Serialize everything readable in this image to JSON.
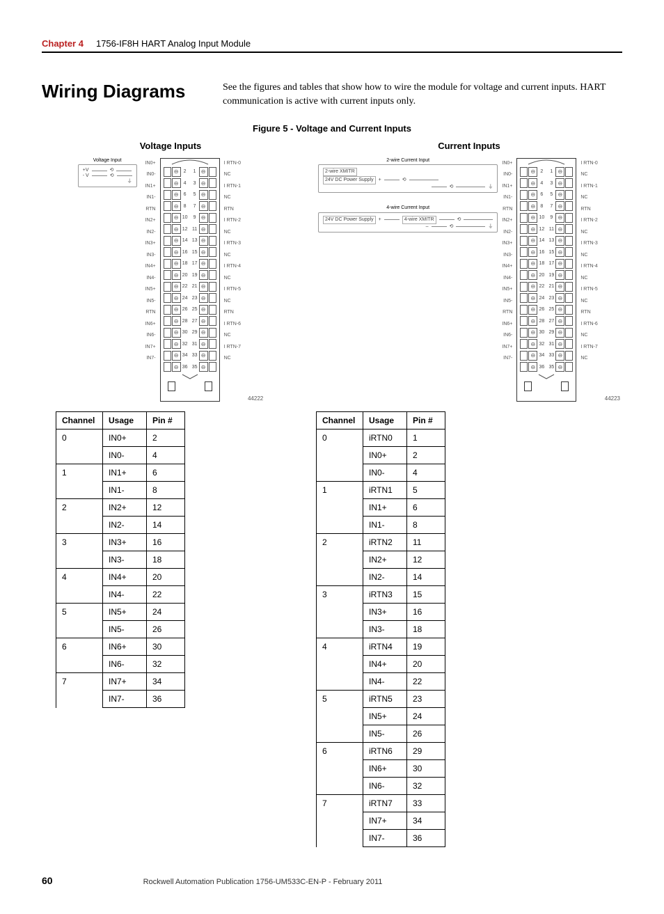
{
  "header": {
    "chapter_label": "Chapter 4",
    "chapter_title": "1756-IF8H HART Analog Input Module"
  },
  "title": "Wiring Diagrams",
  "intro": "See the figures and tables that show how to wire the module for voltage and current inputs. HART communication is active with current inputs only.",
  "figure_caption": "Figure 5 - Voltage and Current Inputs",
  "voltage": {
    "heading": "Voltage Inputs",
    "sketch_label": "Voltage Input",
    "plus": "+V",
    "minus": "- V",
    "ref": "44222",
    "left_pins": [
      "IN0+",
      "IN0-",
      "IN1+",
      "IN1-",
      "RTN",
      "IN2+",
      "IN2-",
      "IN3+",
      "IN3-",
      "IN4+",
      "IN4-",
      "IN5+",
      "IN5-",
      "RTN",
      "IN6+",
      "IN6-",
      "IN7+",
      "IN7-"
    ],
    "right_pins": [
      "I RTN-0",
      "NC",
      "I RTN-1",
      "NC",
      "RTN",
      "I RTN-2",
      "NC",
      "I RTN-3",
      "NC",
      "I RTN-4",
      "NC",
      "I RTN-5",
      "NC",
      "RTN",
      "I RTN-6",
      "NC",
      "I RTN-7",
      "NC"
    ],
    "tb_left_nums": [
      2,
      4,
      6,
      8,
      10,
      12,
      14,
      16,
      18,
      20,
      22,
      24,
      26,
      28,
      30,
      32,
      34,
      36
    ],
    "tb_right_nums": [
      1,
      3,
      5,
      7,
      9,
      11,
      13,
      15,
      17,
      19,
      21,
      23,
      25,
      27,
      29,
      31,
      33,
      35
    ],
    "table": {
      "columns": [
        "Channel",
        "Usage",
        "Pin #"
      ],
      "rows": [
        [
          "0",
          "IN0+",
          "2"
        ],
        [
          "",
          "IN0-",
          "4"
        ],
        [
          "1",
          "IN1+",
          "6"
        ],
        [
          "",
          "IN1-",
          "8"
        ],
        [
          "2",
          "IN2+",
          "12"
        ],
        [
          "",
          "IN2-",
          "14"
        ],
        [
          "3",
          "IN3+",
          "16"
        ],
        [
          "",
          "IN3-",
          "18"
        ],
        [
          "4",
          "IN4+",
          "20"
        ],
        [
          "",
          "IN4-",
          "22"
        ],
        [
          "5",
          "IN5+",
          "24"
        ],
        [
          "",
          "IN5-",
          "26"
        ],
        [
          "6",
          "IN6+",
          "30"
        ],
        [
          "",
          "IN6-",
          "32"
        ],
        [
          "7",
          "IN7+",
          "34"
        ],
        [
          "",
          "IN7-",
          "36"
        ]
      ]
    }
  },
  "current": {
    "heading": "Current Inputs",
    "sketch2_label": "2-wire Current Input",
    "sketch4_label": "4-wire Current Input",
    "ps_text": "24V DC Power Supply",
    "xmitr2": "2-wire XMITR",
    "xmitr4": "4-wire XMITR",
    "ref": "44223",
    "left_pins": [
      "IN0+",
      "IN0-",
      "IN1+",
      "IN1-",
      "RTN",
      "IN2+",
      "IN2-",
      "IN3+",
      "IN3-",
      "IN4+",
      "IN4-",
      "IN5+",
      "IN5-",
      "RTN",
      "IN6+",
      "IN6-",
      "IN7+",
      "IN7-"
    ],
    "right_pins": [
      "I RTN-0",
      "NC",
      "I RTN-1",
      "NC",
      "RTN",
      "I RTN-2",
      "NC",
      "I RTN-3",
      "NC",
      "I RTN-4",
      "NC",
      "I RTN-5",
      "NC",
      "RTN",
      "I RTN-6",
      "NC",
      "I RTN-7",
      "NC"
    ],
    "tb_left_nums": [
      2,
      4,
      6,
      8,
      10,
      12,
      14,
      16,
      18,
      20,
      22,
      24,
      26,
      28,
      30,
      32,
      34,
      36
    ],
    "tb_right_nums": [
      1,
      3,
      5,
      7,
      9,
      11,
      13,
      15,
      17,
      19,
      21,
      23,
      25,
      27,
      29,
      31,
      33,
      35
    ],
    "table": {
      "columns": [
        "Channel",
        "Usage",
        "Pin #"
      ],
      "rows": [
        [
          "0",
          "iRTN0",
          "1"
        ],
        [
          "",
          "IN0+",
          "2"
        ],
        [
          "",
          "IN0-",
          "4"
        ],
        [
          "1",
          "iRTN1",
          "5"
        ],
        [
          "",
          "IN1+",
          "6"
        ],
        [
          "",
          "IN1-",
          "8"
        ],
        [
          "2",
          "iRTN2",
          "11"
        ],
        [
          "",
          "IN2+",
          "12"
        ],
        [
          "",
          "IN2-",
          "14"
        ],
        [
          "3",
          "iRTN3",
          "15"
        ],
        [
          "",
          "IN3+",
          "16"
        ],
        [
          "",
          "IN3-",
          "18"
        ],
        [
          "4",
          "iRTN4",
          "19"
        ],
        [
          "",
          "IN4+",
          "20"
        ],
        [
          "",
          "IN4-",
          "22"
        ],
        [
          "5",
          "iRTN5",
          "23"
        ],
        [
          "",
          "IN5+",
          "24"
        ],
        [
          "",
          "IN5-",
          "26"
        ],
        [
          "6",
          "iRTN6",
          "29"
        ],
        [
          "",
          "IN6+",
          "30"
        ],
        [
          "",
          "IN6-",
          "32"
        ],
        [
          "7",
          "iRTN7",
          "33"
        ],
        [
          "",
          "IN7+",
          "34"
        ],
        [
          "",
          "IN7-",
          "36"
        ]
      ]
    }
  },
  "footer": {
    "page": "60",
    "pub": "Rockwell Automation Publication 1756-UM533C-EN-P - February 2011"
  }
}
